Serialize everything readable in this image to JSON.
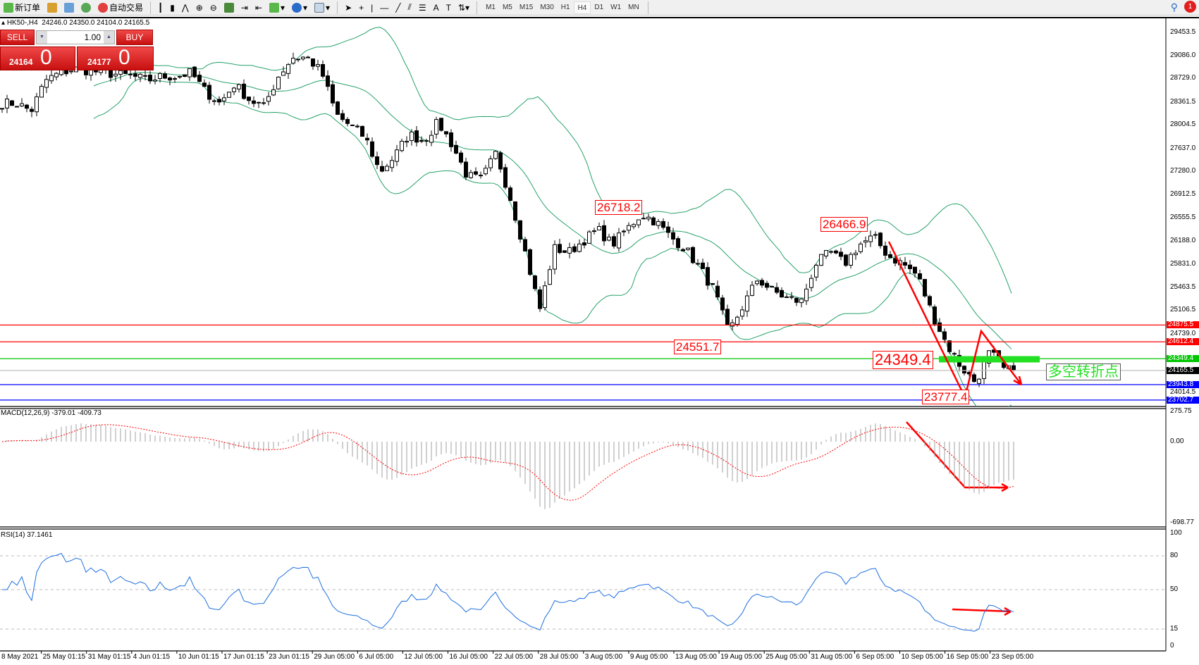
{
  "toolbar": {
    "new_order": "新订单",
    "auto_trading": "自动交易",
    "timeframes": [
      "M1",
      "M5",
      "M15",
      "M30",
      "H1",
      "H4",
      "D1",
      "W1",
      "MN"
    ],
    "active_timeframe": "H4",
    "notification_count": "1"
  },
  "chart_header": {
    "symbol": "HK50-,H4",
    "ohlc": "24246.0 24350.0 24104.0 24165.5"
  },
  "one_click": {
    "sell_label": "SELL",
    "buy_label": "BUY",
    "volume": "1.00",
    "sell_price_main": "24164",
    "sell_price_big": "0",
    "buy_price_main": "24177",
    "buy_price_big": "0",
    "accent": "#d42020"
  },
  "chart_data": {
    "type": "candlestick",
    "symbol": "HK50-",
    "timeframe": "H4",
    "closes": [
      28342,
      28342,
      28223,
      28701,
      28820,
      28880,
      28850,
      28820,
      28790,
      28761,
      28701,
      28761,
      28761,
      28820,
      28522,
      28342,
      28641,
      28402,
      28283,
      28761,
      29059,
      29059,
      28820,
      28163,
      27984,
      27805,
      27268,
      27506,
      27865,
      27745,
      28044,
      27685,
      27208,
      27148,
      27566,
      26849,
      26013,
      25117,
      26073,
      26013,
      26192,
      26371,
      26132,
      26371,
      26610,
      26491,
      26252,
      26073,
      25774,
      25415,
      24758,
      25177,
      25595,
      25415,
      25296,
      25237,
      25834,
      26013,
      25834,
      26132,
      26252,
      25953,
      25834,
      25654,
      25057,
      24580,
      24221,
      23980,
      24460,
      24165.5
    ],
    "price_ticks": [
      "29453.5",
      "29086.0",
      "28729.0",
      "28361.5",
      "28004.5",
      "27637.0",
      "27280.0",
      "26912.5",
      "26555.5",
      "26188.0",
      "25831.0",
      "25463.5",
      "25106.5",
      "24739.0",
      "24014.5"
    ],
    "levels": [
      {
        "value": "24875.5",
        "color": "#ff0000"
      },
      {
        "value": "24612.4",
        "color": "#ff0000"
      },
      {
        "value": "24349.4",
        "color": "#00c800"
      },
      {
        "value": "24165.5",
        "color": "#000000",
        "line": "#c0c0c0"
      },
      {
        "value": "23943.8",
        "color": "#0000ff"
      },
      {
        "value": "23702.7",
        "color": "#0000ff"
      }
    ],
    "annotations": [
      "26718.2",
      "26466.9",
      "24551.7",
      "24349.4",
      "23777.4"
    ],
    "text_note": "多空转折点",
    "bollinger_color": "#26a269",
    "time_labels": [
      "8 May 2021",
      "25 May 01:15",
      "31 May 01:15",
      "4 Jun 01:15",
      "10 Jun 01:15",
      "17 Jun 01:15",
      "23 Jun 01:15",
      "29 Jun 05:00",
      "6 Jul 05:00",
      "12 Jul 05:00",
      "16 Jul 05:00",
      "22 Jul 05:00",
      "28 Jul 05:00",
      "3 Aug 05:00",
      "9 Aug 05:00",
      "13 Aug 05:00",
      "19 Aug 05:00",
      "25 Aug 05:00",
      "31 Aug 05:00",
      "6 Sep 05:00",
      "10 Sep 05:00",
      "16 Sep 05:00",
      "23 Sep 05:00"
    ],
    "macd": {
      "label": "MACD(12,26,9) -379.01 -409.73",
      "ticks": [
        "275.75",
        "0.00",
        "-698.77"
      ],
      "signal_color": "#ff0000",
      "hist_color": "#a0a0a0"
    },
    "rsi": {
      "label": "RSI(14) 37.1461",
      "ticks": [
        "100",
        "80",
        "50",
        "15",
        "0"
      ],
      "levels": [
        80,
        50,
        15
      ],
      "color": "#1e6fe0"
    }
  }
}
